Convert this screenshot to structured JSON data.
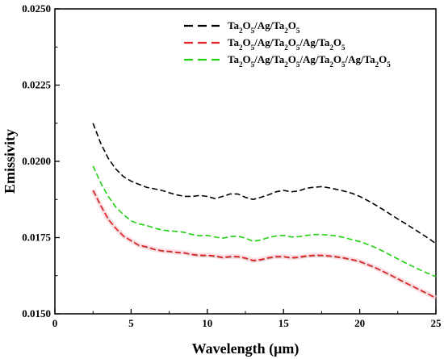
{
  "chart_data": {
    "type": "line",
    "xlabel": "Wavelength (μm)",
    "ylabel": "Emissivity",
    "xlim": [
      0,
      25
    ],
    "ylim": [
      0.015,
      0.025
    ],
    "xticks": [
      0,
      5,
      10,
      15,
      20,
      25
    ],
    "xtick_labels": [
      "0",
      "5",
      "10",
      "15",
      "20",
      "25"
    ],
    "yticks": [
      0.015,
      0.0175,
      0.02,
      0.0225,
      0.025
    ],
    "ytick_labels": [
      "0.0150",
      "0.0175",
      "0.0200",
      "0.0225",
      "0.0250"
    ],
    "grid": false,
    "legend_position": "top-right",
    "series": [
      {
        "name": "Ta2O5/Ag/Ta2O5",
        "legend": [
          {
            "t": "Ta",
            "s": false
          },
          {
            "t": "2",
            "s": true
          },
          {
            "t": "O",
            "s": false
          },
          {
            "t": "5",
            "s": true
          },
          {
            "t": "/Ag/Ta",
            "s": false
          },
          {
            "t": "2",
            "s": true
          },
          {
            "t": "O",
            "s": false
          },
          {
            "t": "5",
            "s": true
          }
        ],
        "color": "#000000",
        "style": "dashed",
        "x": [
          2.5,
          3,
          3.5,
          4,
          4.5,
          5,
          5.5,
          6,
          6.5,
          7,
          7.5,
          8,
          8.5,
          9,
          9.5,
          10,
          10.5,
          11,
          11.5,
          12,
          12.5,
          13,
          13.5,
          14,
          14.5,
          15,
          15.5,
          16,
          16.5,
          17,
          17.5,
          18,
          18.5,
          19,
          19.5,
          20,
          20.5,
          21,
          21.5,
          22,
          22.5,
          23,
          23.5,
          24,
          24.5,
          25
        ],
        "y": [
          0.02125,
          0.0206,
          0.0201,
          0.01975,
          0.0195,
          0.01935,
          0.01925,
          0.01915,
          0.0191,
          0.01905,
          0.01897,
          0.0189,
          0.01885,
          0.01885,
          0.01888,
          0.01885,
          0.01878,
          0.01885,
          0.01893,
          0.01893,
          0.01882,
          0.01875,
          0.01882,
          0.0189,
          0.019,
          0.01905,
          0.019,
          0.01903,
          0.01912,
          0.01915,
          0.01917,
          0.01913,
          0.01908,
          0.01902,
          0.01895,
          0.01885,
          0.01872,
          0.01858,
          0.01843,
          0.01827,
          0.01811,
          0.01796,
          0.0178,
          0.01764,
          0.01748,
          0.0173
        ]
      },
      {
        "name": "Ta2O5/Ag/Ta2O5/Ag/Ta2O5",
        "legend": [
          {
            "t": "Ta",
            "s": false
          },
          {
            "t": "2",
            "s": true
          },
          {
            "t": "O",
            "s": false
          },
          {
            "t": "5",
            "s": true
          },
          {
            "t": "/Ag/Ta",
            "s": false
          },
          {
            "t": "2",
            "s": true
          },
          {
            "t": "O",
            "s": false
          },
          {
            "t": "5",
            "s": true
          },
          {
            "t": "/Ag/Ta",
            "s": false
          },
          {
            "t": "2",
            "s": true
          },
          {
            "t": "O",
            "s": false
          },
          {
            "t": "5",
            "s": true
          }
        ],
        "color": "#e8222a",
        "style": "dashed",
        "x": [
          2.5,
          3,
          3.5,
          4,
          4.5,
          5,
          5.5,
          6,
          6.5,
          7,
          7.5,
          8,
          8.5,
          9,
          9.5,
          10,
          10.5,
          11,
          11.5,
          12,
          12.5,
          13,
          13.5,
          14,
          14.5,
          15,
          15.5,
          16,
          16.5,
          17,
          17.5,
          18,
          18.5,
          19,
          19.5,
          20,
          20.5,
          21,
          21.5,
          22,
          22.5,
          23,
          23.5,
          24,
          24.5,
          25
        ],
        "y": [
          0.01905,
          0.01855,
          0.0181,
          0.0178,
          0.01755,
          0.0174,
          0.01725,
          0.0172,
          0.01712,
          0.01707,
          0.01705,
          0.01702,
          0.017,
          0.01695,
          0.01692,
          0.01692,
          0.0169,
          0.01685,
          0.01688,
          0.01688,
          0.01683,
          0.01675,
          0.01678,
          0.01684,
          0.01688,
          0.01688,
          0.01684,
          0.01686,
          0.0169,
          0.01692,
          0.01692,
          0.0169,
          0.01687,
          0.01683,
          0.01678,
          0.01672,
          0.01662,
          0.01652,
          0.0164,
          0.01628,
          0.01615,
          0.01602,
          0.0159,
          0.01577,
          0.01565,
          0.01552
        ]
      },
      {
        "name": "Ta2O5/Ag/Ta2O5/Ag/Ta2O5/Ag/Ta2O5",
        "legend": [
          {
            "t": "Ta",
            "s": false
          },
          {
            "t": "2",
            "s": true
          },
          {
            "t": "O",
            "s": false
          },
          {
            "t": "5",
            "s": true
          },
          {
            "t": "/Ag/Ta",
            "s": false
          },
          {
            "t": "2",
            "s": true
          },
          {
            "t": "O",
            "s": false
          },
          {
            "t": "5",
            "s": true
          },
          {
            "t": "/Ag/Ta",
            "s": false
          },
          {
            "t": "2",
            "s": true
          },
          {
            "t": "O",
            "s": false
          },
          {
            "t": "5",
            "s": true
          },
          {
            "t": "/Ag/Ta",
            "s": false
          },
          {
            "t": "2",
            "s": true
          },
          {
            "t": "O",
            "s": false
          },
          {
            "t": "5",
            "s": true
          }
        ],
        "color": "#1fd10f",
        "style": "dashed",
        "x": [
          2.5,
          3,
          3.5,
          4,
          4.5,
          5,
          5.5,
          6,
          6.5,
          7,
          7.5,
          8,
          8.5,
          9,
          9.5,
          10,
          10.5,
          11,
          11.5,
          12,
          12.5,
          13,
          13.5,
          14,
          14.5,
          15,
          15.5,
          16,
          16.5,
          17,
          17.5,
          18,
          18.5,
          19,
          19.5,
          20,
          20.5,
          21,
          21.5,
          22,
          22.5,
          23,
          23.5,
          24,
          24.5,
          25
        ],
        "y": [
          0.01985,
          0.0193,
          0.01885,
          0.0185,
          0.01825,
          0.01805,
          0.01795,
          0.0179,
          0.01782,
          0.01775,
          0.01772,
          0.0177,
          0.01767,
          0.0176,
          0.01756,
          0.01757,
          0.01752,
          0.01748,
          0.01753,
          0.01755,
          0.01748,
          0.01738,
          0.01742,
          0.0175,
          0.01755,
          0.01757,
          0.01752,
          0.01753,
          0.01757,
          0.0176,
          0.0176,
          0.01758,
          0.01755,
          0.0175,
          0.01743,
          0.01737,
          0.01728,
          0.01718,
          0.01706,
          0.01693,
          0.0168,
          0.01667,
          0.01655,
          0.01643,
          0.01632,
          0.01622
        ]
      }
    ]
  }
}
